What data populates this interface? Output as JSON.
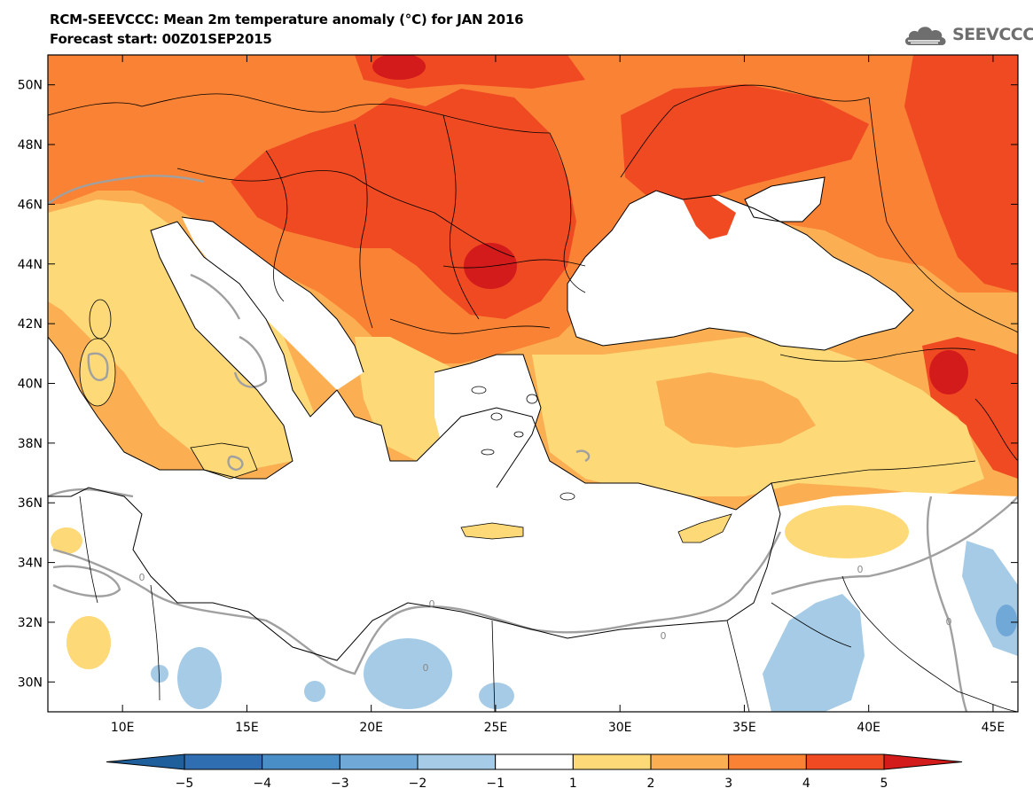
{
  "header": {
    "title": "RCM-SEEVCCC: Mean 2m temperature anomaly (°C) for JAN 2016",
    "subtitle": "Forecast start: 00Z01SEP2015",
    "logo_text": "SEEVCCC"
  },
  "map": {
    "lon_range": [
      7,
      46
    ],
    "lat_range": [
      29,
      51
    ],
    "lon_ticks": [
      10,
      15,
      20,
      25,
      30,
      35,
      40,
      45
    ],
    "lon_tick_labels": [
      "10E",
      "15E",
      "20E",
      "25E",
      "30E",
      "35E",
      "40E",
      "45E"
    ],
    "lat_ticks": [
      30,
      32,
      34,
      36,
      38,
      40,
      42,
      44,
      46,
      48,
      50
    ],
    "lat_tick_labels": [
      "30N",
      "32N",
      "34N",
      "36N",
      "38N",
      "40N",
      "42N",
      "44N",
      "46N",
      "48N",
      "50N"
    ],
    "contour_labels": [
      "0",
      "0",
      "0",
      "0",
      "0",
      "0"
    ]
  },
  "colorbar": {
    "levels": [
      "-5",
      "-4",
      "-3",
      "-2",
      "-1",
      "1",
      "2",
      "3",
      "4",
      "5"
    ],
    "colors": [
      "#1f5f9c",
      "#2f6eb0",
      "#4a8ec8",
      "#70a8d8",
      "#a6cbe6",
      "#ffffff",
      "#fdd978",
      "#fcaf52",
      "#f98235",
      "#f04a23",
      "#d41b1b"
    ]
  },
  "palette": {
    "anomaly_1_2": "#fdd978",
    "anomaly_2_3": "#fcaf52",
    "anomaly_3_4": "#f98235",
    "anomaly_4_5": "#f04a23",
    "anomaly_gt5": "#d41b1b",
    "anomaly_m1_m2": "#a6cbe6",
    "anomaly_m2_m3": "#70a8d8",
    "zero_contour": "#a0a0a0"
  }
}
